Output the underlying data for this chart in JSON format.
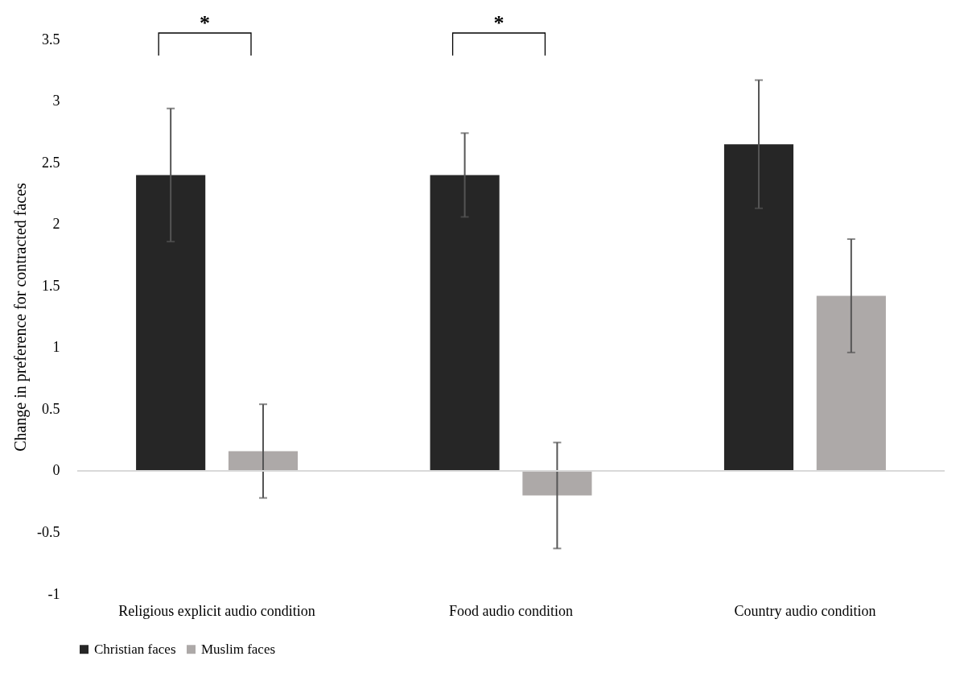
{
  "chart_data": {
    "type": "bar",
    "ylabel": "Change in preference for contracted faces",
    "categories": [
      "Religious explicit audio condition",
      "Food audio condition",
      "Country audio condition"
    ],
    "series": [
      {
        "name": "Christian faces",
        "color": "#262626",
        "values": [
          2.4,
          2.4,
          2.65
        ],
        "errors": [
          0.54,
          0.34,
          0.52
        ]
      },
      {
        "name": "Muslim faces",
        "color": "#ada9a8",
        "values": [
          0.16,
          -0.2,
          1.42
        ],
        "errors": [
          0.38,
          0.43,
          0.46
        ]
      }
    ],
    "ylim": [
      -1,
      3.5
    ],
    "yticks": [
      -1,
      -0.5,
      0,
      0.5,
      1,
      1.5,
      2,
      2.5,
      3,
      3.5
    ],
    "legend": "bottom",
    "annotations": [
      "*",
      "*"
    ]
  }
}
